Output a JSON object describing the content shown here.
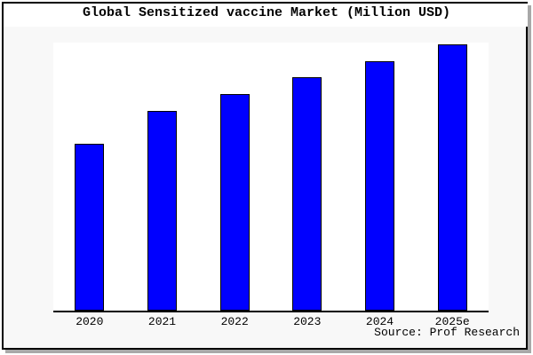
{
  "title": "Global Sensitized vaccine Market (Million USD)",
  "source_credit": "Source: Prof Research",
  "colors": {
    "bar_fill": "#0000ff",
    "bar_border": "#000000",
    "card_background": "#f8f8f8",
    "plot_background": "#ffffff",
    "title_background": "#ffffff",
    "axis_line": "#000000",
    "border": "#000000",
    "shadow": "#a8a8a8",
    "text": "#000000"
  },
  "chart_data": {
    "type": "bar",
    "title": "Global Sensitized vaccine Market (Million USD)",
    "categories": [
      "2020",
      "2021",
      "2022",
      "2023",
      "2024",
      "2025e"
    ],
    "values": [
      62.7,
      75.0,
      81.3,
      87.7,
      93.7,
      100.0
    ],
    "value_units": "relative (y-axis not labeled in image; values normalized so 2025e = 100)",
    "xlabel": "",
    "ylabel": "",
    "ylim": [
      0,
      100.7
    ],
    "grid": false,
    "legend_position": "none",
    "annotations": [
      "Source: Prof Research"
    ]
  }
}
